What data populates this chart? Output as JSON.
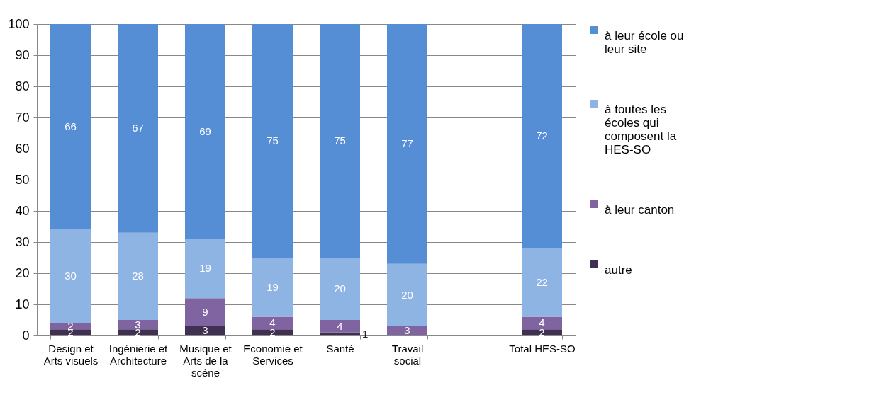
{
  "chart_data": {
    "type": "bar",
    "stacked": true,
    "categories": [
      "Design et Arts visuels",
      "Ingénierie et Architecture",
      "Musique et Arts de la scène",
      "Economie et Services",
      "Santé",
      "Travail social",
      null,
      "Total HES-SO"
    ],
    "series": [
      {
        "name": "autre",
        "color": "#403152",
        "values": [
          2,
          2,
          3,
          2,
          1,
          null,
          null,
          2
        ]
      },
      {
        "name": "à leur canton",
        "color": "#8064a2",
        "values": [
          2,
          3,
          9,
          4,
          4,
          3,
          null,
          4
        ]
      },
      {
        "name": "à toutes les écoles qui composent la HES-SO",
        "color": "#8eb4e3",
        "values": [
          30,
          28,
          19,
          19,
          20,
          20,
          null,
          22
        ]
      },
      {
        "name": "à leur école ou leur site",
        "color": "#558ed5",
        "values": [
          66,
          67,
          69,
          75,
          75,
          77,
          null,
          72
        ]
      }
    ],
    "ylim": [
      0,
      100
    ],
    "yticks": [
      0,
      10,
      20,
      30,
      40,
      50,
      60,
      70,
      80,
      90,
      100
    ],
    "grid": "y",
    "legend": "right",
    "data_labels": true
  }
}
